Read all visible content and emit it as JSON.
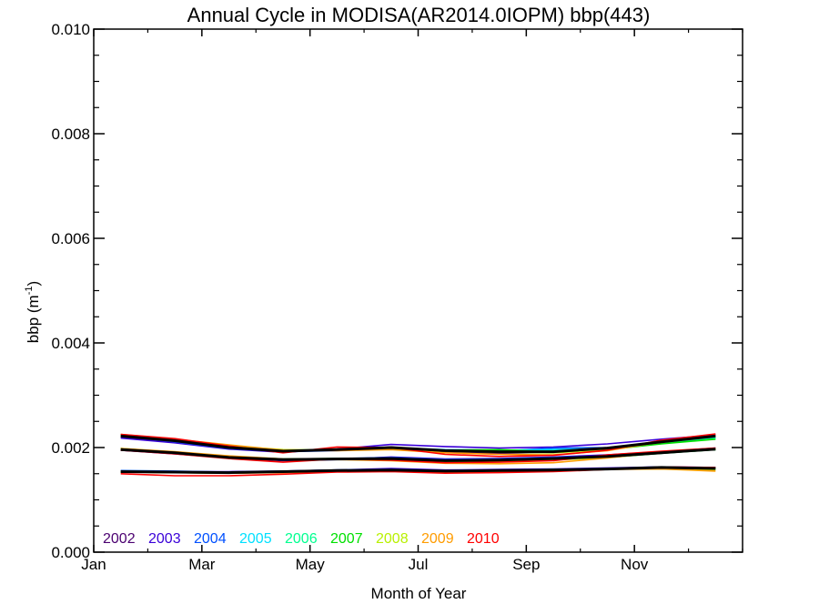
{
  "chart_data": {
    "type": "line",
    "title": "Annual Cycle in MODISA(AR2014.0IOPM) bbp(443)",
    "xlabel": "Month of Year",
    "ylabel_main": "bbp (m",
    "ylabel_sup": "-1",
    "ylabel_close": ")",
    "xlim": [
      1,
      13
    ],
    "ylim": [
      0.0,
      0.01
    ],
    "grid": false,
    "legend_position": "bottom-left",
    "x_ticks": [
      {
        "value": 1,
        "label": "Jan"
      },
      {
        "value": 3,
        "label": "Mar"
      },
      {
        "value": 5,
        "label": "May"
      },
      {
        "value": 7,
        "label": "Jul"
      },
      {
        "value": 9,
        "label": "Sep"
      },
      {
        "value": 11,
        "label": "Nov"
      }
    ],
    "y_ticks": [
      {
        "value": 0.0,
        "label": "0.000"
      },
      {
        "value": 0.002,
        "label": "0.002"
      },
      {
        "value": 0.004,
        "label": "0.004"
      },
      {
        "value": 0.006,
        "label": "0.006"
      },
      {
        "value": 0.008,
        "label": "0.008"
      },
      {
        "value": 0.01,
        "label": "0.010"
      }
    ],
    "x": [
      1.5,
      2.5,
      3.5,
      4.5,
      5.5,
      6.5,
      7.5,
      8.5,
      9.5,
      10.5,
      11.5,
      12.5
    ],
    "legend": [
      {
        "label": "2002",
        "color": "#4b0070"
      },
      {
        "label": "2003",
        "color": "#3a00d8"
      },
      {
        "label": "2004",
        "color": "#0050ff"
      },
      {
        "label": "2005",
        "color": "#00e0ff"
      },
      {
        "label": "2006",
        "color": "#00ff90"
      },
      {
        "label": "2007",
        "color": "#00e000"
      },
      {
        "label": "2008",
        "color": "#b8f000"
      },
      {
        "label": "2009",
        "color": "#ff9c00"
      },
      {
        "label": "2010",
        "color": "#ff0000"
      }
    ],
    "series": [
      {
        "color": "#4b0070",
        "group": "upper",
        "values": [
          0.0022,
          0.00212,
          0.00199,
          0.00193,
          0.00196,
          0.00201,
          0.00192,
          0.00189,
          0.00191,
          0.00198,
          0.00212,
          0.00223
        ]
      },
      {
        "color": "#3a00d8",
        "group": "upper",
        "values": [
          0.00218,
          0.00209,
          0.00197,
          0.00191,
          0.00197,
          0.00206,
          0.00202,
          0.00199,
          0.00201,
          0.00207,
          0.00216,
          0.00224
        ]
      },
      {
        "color": "#0050ff",
        "group": "upper",
        "values": [
          0.00222,
          0.00211,
          0.00198,
          0.00192,
          0.00194,
          0.00199,
          0.00195,
          0.00193,
          0.00199,
          0.002,
          0.0021,
          0.0022
        ]
      },
      {
        "color": "#00e0ff",
        "group": "upper",
        "values": [
          0.00221,
          0.00213,
          0.002,
          0.00193,
          0.00195,
          0.002,
          0.00196,
          0.00195,
          0.00196,
          0.00199,
          0.00209,
          0.00218
        ]
      },
      {
        "color": "#00ff90",
        "group": "upper",
        "values": [
          0.00223,
          0.00214,
          0.00201,
          0.00194,
          0.00195,
          0.00198,
          0.00194,
          0.00192,
          0.00194,
          0.00197,
          0.00208,
          0.00217
        ]
      },
      {
        "color": "#00e000",
        "group": "upper",
        "values": [
          0.00224,
          0.00215,
          0.00202,
          0.00195,
          0.00196,
          0.00199,
          0.00195,
          0.00196,
          0.00192,
          0.00196,
          0.00207,
          0.00216
        ]
      },
      {
        "color": "#b8f000",
        "group": "upper",
        "values": [
          0.00222,
          0.00214,
          0.00203,
          0.00196,
          0.00195,
          0.00197,
          0.00193,
          0.00191,
          0.0019,
          0.00196,
          0.0021,
          0.00221
        ]
      },
      {
        "color": "#ff9c00",
        "group": "upper",
        "values": [
          0.00225,
          0.00216,
          0.00205,
          0.00195,
          0.00194,
          0.00196,
          0.0019,
          0.00187,
          0.00186,
          0.00194,
          0.00211,
          0.00222
        ]
      },
      {
        "color": "#ff0000",
        "group": "upper",
        "values": [
          0.00225,
          0.00217,
          0.00203,
          0.0019,
          0.00201,
          0.002,
          0.00187,
          0.00183,
          0.00185,
          0.00195,
          0.00214,
          0.00226
        ]
      },
      {
        "color": "#000000",
        "group": "upper",
        "values": [
          0.00222,
          0.00213,
          0.002,
          0.00193,
          0.00196,
          0.002,
          0.00194,
          0.00192,
          0.00192,
          0.00199,
          0.00211,
          0.00222
        ]
      },
      {
        "color": "#4b0070",
        "group": "middle",
        "values": [
          0.00196,
          0.00189,
          0.00181,
          0.00176,
          0.00178,
          0.0018,
          0.00176,
          0.00177,
          0.0018,
          0.00183,
          0.0019,
          0.00197
        ]
      },
      {
        "color": "#3a00d8",
        "group": "middle",
        "values": [
          0.00195,
          0.00188,
          0.0018,
          0.00175,
          0.00177,
          0.00182,
          0.00178,
          0.00179,
          0.00182,
          0.00186,
          0.00192,
          0.00199
        ]
      },
      {
        "color": "#0050ff",
        "group": "middle",
        "values": [
          0.00197,
          0.0019,
          0.00182,
          0.00177,
          0.00179,
          0.00181,
          0.00177,
          0.00178,
          0.00181,
          0.00184,
          0.00191,
          0.00198
        ]
      },
      {
        "color": "#00e0ff",
        "group": "middle",
        "values": [
          0.00196,
          0.00189,
          0.00181,
          0.00176,
          0.00178,
          0.00179,
          0.00175,
          0.00176,
          0.0018,
          0.00183,
          0.0019,
          0.00197
        ]
      },
      {
        "color": "#00ff90",
        "group": "middle",
        "values": [
          0.00197,
          0.0019,
          0.00182,
          0.00177,
          0.00178,
          0.00178,
          0.00174,
          0.00175,
          0.00179,
          0.00182,
          0.00189,
          0.00196
        ]
      },
      {
        "color": "#00e000",
        "group": "middle",
        "values": [
          0.00198,
          0.00191,
          0.00183,
          0.00178,
          0.00179,
          0.00179,
          0.00173,
          0.00174,
          0.00177,
          0.00181,
          0.00189,
          0.00196
        ]
      },
      {
        "color": "#b8f000",
        "group": "middle",
        "values": [
          0.00197,
          0.0019,
          0.00183,
          0.00177,
          0.00178,
          0.00177,
          0.00172,
          0.00173,
          0.00176,
          0.00181,
          0.0019,
          0.00197
        ]
      },
      {
        "color": "#ff9c00",
        "group": "middle",
        "values": [
          0.00198,
          0.00192,
          0.00184,
          0.00178,
          0.00177,
          0.00175,
          0.0017,
          0.00169,
          0.00171,
          0.0018,
          0.00191,
          0.00198
        ]
      },
      {
        "color": "#ff0000",
        "group": "middle",
        "values": [
          0.00195,
          0.00188,
          0.00179,
          0.00172,
          0.00178,
          0.00176,
          0.00171,
          0.00172,
          0.00175,
          0.00186,
          0.00193,
          0.00199
        ]
      },
      {
        "color": "#000000",
        "group": "middle",
        "values": [
          0.00196,
          0.0019,
          0.00181,
          0.00177,
          0.00178,
          0.00179,
          0.00175,
          0.00176,
          0.00179,
          0.00183,
          0.0019,
          0.00197
        ]
      },
      {
        "color": "#4b0070",
        "group": "lower",
        "values": [
          0.00154,
          0.00153,
          0.00152,
          0.00154,
          0.00156,
          0.00157,
          0.00155,
          0.00157,
          0.00158,
          0.0016,
          0.00162,
          0.00161
        ]
      },
      {
        "color": "#3a00d8",
        "group": "lower",
        "values": [
          0.00155,
          0.00154,
          0.00154,
          0.00155,
          0.00157,
          0.0016,
          0.00157,
          0.00158,
          0.00159,
          0.00161,
          0.00163,
          0.00162
        ]
      },
      {
        "color": "#0050ff",
        "group": "lower",
        "values": [
          0.00156,
          0.00155,
          0.00153,
          0.00155,
          0.00157,
          0.00158,
          0.00156,
          0.00157,
          0.00158,
          0.0016,
          0.00163,
          0.00161
        ]
      },
      {
        "color": "#00e0ff",
        "group": "lower",
        "values": [
          0.00155,
          0.00154,
          0.00152,
          0.00154,
          0.00156,
          0.00157,
          0.00155,
          0.00156,
          0.00157,
          0.00159,
          0.00162,
          0.0016
        ]
      },
      {
        "color": "#00ff90",
        "group": "lower",
        "values": [
          0.00154,
          0.00153,
          0.00152,
          0.00153,
          0.00155,
          0.00156,
          0.00154,
          0.00156,
          0.00157,
          0.00159,
          0.00161,
          0.0016
        ]
      },
      {
        "color": "#00e000",
        "group": "lower",
        "values": [
          0.00153,
          0.00152,
          0.00151,
          0.00153,
          0.00155,
          0.00156,
          0.00155,
          0.00156,
          0.00158,
          0.00159,
          0.00161,
          0.00159
        ]
      },
      {
        "color": "#b8f000",
        "group": "lower",
        "values": [
          0.00154,
          0.00153,
          0.00152,
          0.00153,
          0.00155,
          0.00155,
          0.00154,
          0.00155,
          0.00157,
          0.00159,
          0.0016,
          0.00157
        ]
      },
      {
        "color": "#ff9c00",
        "group": "lower",
        "values": [
          0.00153,
          0.00152,
          0.00151,
          0.00152,
          0.00154,
          0.00155,
          0.00153,
          0.00154,
          0.00156,
          0.00158,
          0.00159,
          0.00155
        ]
      },
      {
        "color": "#ff0000",
        "group": "lower",
        "values": [
          0.0015,
          0.00146,
          0.00146,
          0.00149,
          0.00153,
          0.00154,
          0.00151,
          0.00152,
          0.00154,
          0.00158,
          0.00163,
          0.00162
        ]
      },
      {
        "color": "#000000",
        "group": "lower",
        "values": [
          0.00154,
          0.00153,
          0.00152,
          0.00154,
          0.00156,
          0.00157,
          0.00155,
          0.00156,
          0.00157,
          0.00159,
          0.00162,
          0.0016
        ]
      }
    ]
  }
}
